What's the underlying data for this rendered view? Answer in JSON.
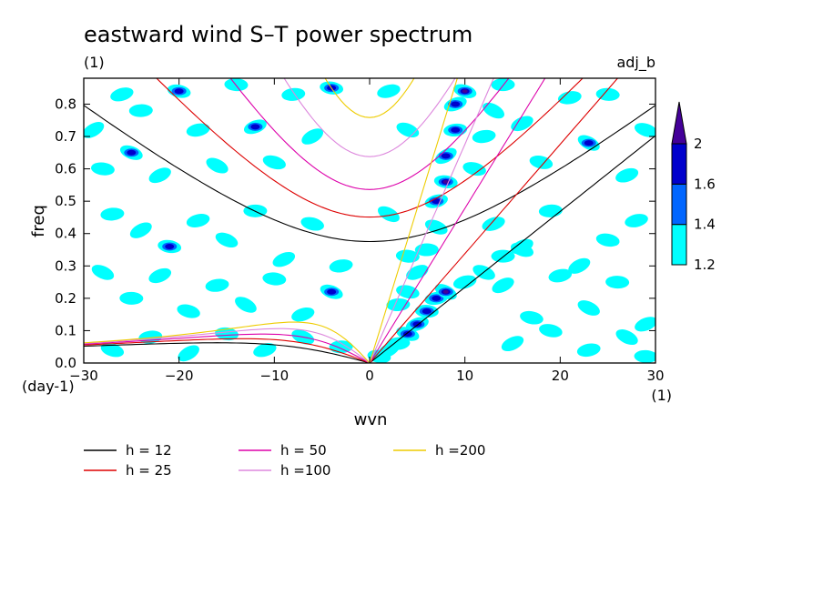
{
  "chart_data": {
    "type": "heatmap",
    "title": "eastward wind S–T power spectrum",
    "subtitle_left": "(1)",
    "subtitle_right": "adj_b",
    "xlabel": "wvn",
    "ylabel": "freq",
    "x_unit": "(1)",
    "y_unit": "(day-1)",
    "xlim": [
      -30,
      30
    ],
    "ylim": [
      0,
      0.88
    ],
    "x_ticks": [
      -30,
      -20,
      -10,
      0,
      10,
      20,
      30
    ],
    "x_tick_labels": [
      "−30",
      "−20",
      "−10",
      "0",
      "10",
      "20",
      "30"
    ],
    "y_ticks": [
      0,
      0.1,
      0.2,
      0.3,
      0.4,
      0.5,
      0.6,
      0.7,
      0.8
    ],
    "y_tick_labels": [
      "0.0",
      "0.1",
      "0.2",
      "0.3",
      "0.4",
      "0.5",
      "0.6",
      "0.7",
      "0.8"
    ],
    "colorbar": {
      "levels": [
        1.2,
        1.4,
        1.6,
        2
      ],
      "labels": [
        "1.2",
        "1.4",
        "1.6",
        "2"
      ],
      "colors": [
        "#00ffff",
        "#0066ff",
        "#0000cc",
        "#440099"
      ]
    },
    "contour_cells": [
      [
        -29,
        0.72,
        1
      ],
      [
        -28,
        0.6,
        1
      ],
      [
        -26,
        0.83,
        1
      ],
      [
        -25,
        0.65,
        2
      ],
      [
        -24,
        0.78,
        1
      ],
      [
        -22,
        0.58,
        1
      ],
      [
        -20,
        0.84,
        2
      ],
      [
        -18,
        0.72,
        1
      ],
      [
        -16,
        0.61,
        1
      ],
      [
        -14,
        0.86,
        1
      ],
      [
        -12,
        0.73,
        2
      ],
      [
        -10,
        0.62,
        1
      ],
      [
        -8,
        0.83,
        1
      ],
      [
        -6,
        0.7,
        1
      ],
      [
        -4,
        0.85,
        2
      ],
      [
        2,
        0.84,
        1
      ],
      [
        4,
        0.72,
        1
      ],
      [
        14,
        0.86,
        1
      ],
      [
        16,
        0.74,
        1
      ],
      [
        18,
        0.62,
        1
      ],
      [
        21,
        0.82,
        1
      ],
      [
        23,
        0.68,
        2
      ],
      [
        25,
        0.83,
        1
      ],
      [
        27,
        0.58,
        1
      ],
      [
        29,
        0.72,
        1
      ],
      [
        -27,
        0.46,
        1
      ],
      [
        -24,
        0.41,
        1
      ],
      [
        -21,
        0.36,
        2
      ],
      [
        -18,
        0.44,
        1
      ],
      [
        -15,
        0.38,
        1
      ],
      [
        -12,
        0.47,
        1
      ],
      [
        -9,
        0.32,
        1
      ],
      [
        -6,
        0.43,
        1
      ],
      [
        -3,
        0.3,
        1
      ],
      [
        2,
        0.46,
        1
      ],
      [
        4,
        0.33,
        1
      ],
      [
        13,
        0.43,
        1
      ],
      [
        16,
        0.35,
        1
      ],
      [
        19,
        0.47,
        1
      ],
      [
        22,
        0.3,
        1
      ],
      [
        25,
        0.38,
        1
      ],
      [
        28,
        0.44,
        1
      ],
      [
        -28,
        0.28,
        1
      ],
      [
        -25,
        0.2,
        1
      ],
      [
        -22,
        0.27,
        1
      ],
      [
        -19,
        0.16,
        1
      ],
      [
        -16,
        0.24,
        1
      ],
      [
        -13,
        0.18,
        1
      ],
      [
        -10,
        0.26,
        1
      ],
      [
        -7,
        0.15,
        1
      ],
      [
        -4,
        0.22,
        2
      ],
      [
        3,
        0.18,
        1
      ],
      [
        14,
        0.24,
        1
      ],
      [
        17,
        0.14,
        1
      ],
      [
        20,
        0.27,
        1
      ],
      [
        23,
        0.17,
        1
      ],
      [
        26,
        0.25,
        1
      ],
      [
        29,
        0.12,
        1
      ],
      [
        -27,
        0.04,
        1
      ],
      [
        -23,
        0.08,
        1
      ],
      [
        -19,
        0.03,
        1
      ],
      [
        -15,
        0.09,
        1
      ],
      [
        -11,
        0.04,
        1
      ],
      [
        -7,
        0.08,
        1
      ],
      [
        -3,
        0.05,
        1
      ],
      [
        15,
        0.06,
        1
      ],
      [
        19,
        0.1,
        1
      ],
      [
        23,
        0.04,
        1
      ],
      [
        27,
        0.08,
        1
      ],
      [
        29,
        0.02,
        1
      ],
      [
        9,
        0.8,
        2
      ],
      [
        10,
        0.84,
        3
      ],
      [
        9,
        0.72,
        2
      ],
      [
        8,
        0.64,
        2
      ],
      [
        8,
        0.56,
        3
      ],
      [
        7,
        0.5,
        2
      ],
      [
        7,
        0.42,
        1
      ],
      [
        6,
        0.35,
        1
      ],
      [
        5,
        0.28,
        1
      ],
      [
        4,
        0.22,
        1
      ],
      [
        7,
        0.2,
        2
      ],
      [
        8,
        0.22,
        3
      ],
      [
        6,
        0.16,
        2
      ],
      [
        5,
        0.12,
        2
      ],
      [
        4,
        0.09,
        2
      ],
      [
        3,
        0.06,
        1
      ],
      [
        2,
        0.04,
        1
      ],
      [
        1,
        0.02,
        1
      ],
      [
        10,
        0.25,
        1
      ],
      [
        12,
        0.28,
        1
      ],
      [
        14,
        0.33,
        1
      ],
      [
        16,
        0.36,
        1
      ],
      [
        11,
        0.6,
        1
      ],
      [
        12,
        0.7,
        1
      ],
      [
        13,
        0.78,
        1
      ]
    ],
    "series": [
      {
        "name": "h = 12",
        "color": "#000000",
        "equivalent_depth": 12
      },
      {
        "name": "h = 25",
        "color": "#dd0000",
        "equivalent_depth": 25
      },
      {
        "name": "h = 50",
        "color": "#dd00aa",
        "equivalent_depth": 50
      },
      {
        "name": "h =100",
        "color": "#dd88dd",
        "equivalent_depth": 100
      },
      {
        "name": "h =200",
        "color": "#eecc00",
        "equivalent_depth": 200
      }
    ],
    "legend_placement": "bottom",
    "grid": false
  }
}
